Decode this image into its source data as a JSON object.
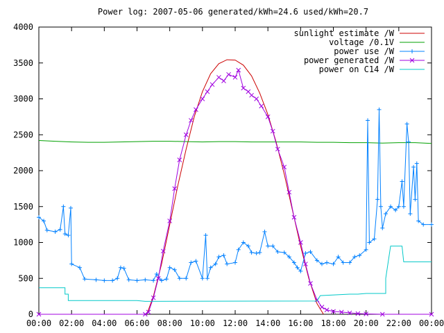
{
  "chart_data": {
    "type": "line",
    "title": "Power log: 2007-05-06 generated/kWh=24.6 used/kWh=20.7",
    "xlabel": "",
    "ylabel": "",
    "x_ticks": [
      "00:00",
      "02:00",
      "04:00",
      "06:00",
      "08:00",
      "10:00",
      "12:00",
      "14:00",
      "16:00",
      "18:00",
      "20:00",
      "22:00",
      "00:00"
    ],
    "y_ticks": [
      0,
      500,
      1000,
      1500,
      2000,
      2500,
      3000,
      3500,
      4000
    ],
    "xlim_hours": [
      0,
      24
    ],
    "ylim": [
      0,
      4000
    ],
    "grid": false,
    "legend_position": "top-right",
    "series": [
      {
        "name": "sunlight estimate /W",
        "color": "#cc0000",
        "style": "line",
        "points": [
          [
            6.6,
            0
          ],
          [
            7,
            250
          ],
          [
            7.5,
            700
          ],
          [
            8,
            1250
          ],
          [
            8.5,
            1800
          ],
          [
            9,
            2300
          ],
          [
            9.5,
            2750
          ],
          [
            10,
            3100
          ],
          [
            10.5,
            3350
          ],
          [
            11,
            3490
          ],
          [
            11.5,
            3545
          ],
          [
            12,
            3540
          ],
          [
            12.5,
            3470
          ],
          [
            13,
            3320
          ],
          [
            13.5,
            3080
          ],
          [
            14,
            2780
          ],
          [
            14.5,
            2400
          ],
          [
            15,
            1950
          ],
          [
            15.5,
            1450
          ],
          [
            16,
            950
          ],
          [
            16.5,
            500
          ],
          [
            17,
            150
          ],
          [
            17.4,
            0
          ]
        ]
      },
      {
        "name": "voltage /0.1V",
        "color": "#00a000",
        "style": "line",
        "points": [
          [
            0,
            2420
          ],
          [
            1,
            2410
          ],
          [
            2,
            2400
          ],
          [
            3,
            2395
          ],
          [
            4,
            2395
          ],
          [
            5,
            2400
          ],
          [
            6,
            2405
          ],
          [
            7,
            2410
          ],
          [
            8,
            2410
          ],
          [
            9,
            2405
          ],
          [
            10,
            2400
          ],
          [
            11,
            2405
          ],
          [
            12,
            2405
          ],
          [
            13,
            2400
          ],
          [
            14,
            2400
          ],
          [
            15,
            2400
          ],
          [
            16,
            2400
          ],
          [
            17,
            2395
          ],
          [
            18,
            2395
          ],
          [
            19,
            2390
          ],
          [
            20,
            2390
          ],
          [
            21,
            2385
          ],
          [
            22,
            2390
          ],
          [
            23,
            2390
          ],
          [
            24,
            2380
          ]
        ]
      },
      {
        "name": "power use /W",
        "color": "#0080ff",
        "style": "linespoints",
        "points": [
          [
            0,
            1350
          ],
          [
            0.3,
            1300
          ],
          [
            0.5,
            1170
          ],
          [
            1,
            1150
          ],
          [
            1.3,
            1180
          ],
          [
            1.5,
            1500
          ],
          [
            1.6,
            1120
          ],
          [
            1.8,
            1100
          ],
          [
            1.95,
            1480
          ],
          [
            2,
            700
          ],
          [
            2.5,
            650
          ],
          [
            2.8,
            490
          ],
          [
            3.5,
            480
          ],
          [
            4,
            470
          ],
          [
            4.5,
            470
          ],
          [
            4.8,
            500
          ],
          [
            5,
            650
          ],
          [
            5.2,
            640
          ],
          [
            5.5,
            480
          ],
          [
            6,
            470
          ],
          [
            6.5,
            480
          ],
          [
            7,
            470
          ],
          [
            7.2,
            560
          ],
          [
            7.5,
            470
          ],
          [
            7.8,
            490
          ],
          [
            8,
            650
          ],
          [
            8.3,
            620
          ],
          [
            8.6,
            500
          ],
          [
            9,
            500
          ],
          [
            9.3,
            720
          ],
          [
            9.6,
            740
          ],
          [
            10,
            500
          ],
          [
            10.2,
            1100
          ],
          [
            10.3,
            500
          ],
          [
            10.5,
            650
          ],
          [
            10.8,
            700
          ],
          [
            11,
            800
          ],
          [
            11.3,
            820
          ],
          [
            11.5,
            700
          ],
          [
            12,
            720
          ],
          [
            12.2,
            900
          ],
          [
            12.5,
            1000
          ],
          [
            12.8,
            950
          ],
          [
            13,
            860
          ],
          [
            13.3,
            850
          ],
          [
            13.5,
            860
          ],
          [
            13.8,
            1150
          ],
          [
            14,
            950
          ],
          [
            14.3,
            950
          ],
          [
            14.6,
            870
          ],
          [
            15,
            860
          ],
          [
            15.3,
            800
          ],
          [
            15.6,
            720
          ],
          [
            15.8,
            650
          ],
          [
            16,
            600
          ],
          [
            16.3,
            850
          ],
          [
            16.6,
            870
          ],
          [
            17,
            750
          ],
          [
            17.3,
            700
          ],
          [
            17.6,
            720
          ],
          [
            18,
            700
          ],
          [
            18.3,
            800
          ],
          [
            18.6,
            720
          ],
          [
            19,
            720
          ],
          [
            19.3,
            800
          ],
          [
            19.6,
            820
          ],
          [
            20,
            900
          ],
          [
            20.1,
            2700
          ],
          [
            20.2,
            1000
          ],
          [
            20.5,
            1050
          ],
          [
            20.7,
            1600
          ],
          [
            20.8,
            2850
          ],
          [
            20.9,
            1500
          ],
          [
            21,
            1200
          ],
          [
            21.2,
            1400
          ],
          [
            21.5,
            1500
          ],
          [
            21.8,
            1450
          ],
          [
            22,
            1500
          ],
          [
            22.2,
            1850
          ],
          [
            22.3,
            1500
          ],
          [
            22.5,
            2650
          ],
          [
            22.6,
            2400
          ],
          [
            22.7,
            1400
          ],
          [
            22.9,
            2050
          ],
          [
            23,
            1600
          ],
          [
            23.1,
            2100
          ],
          [
            23.2,
            1300
          ],
          [
            23.5,
            1250
          ],
          [
            24,
            1250
          ]
        ]
      },
      {
        "name": "power generated /W",
        "color": "#a000e0",
        "style": "linespoints",
        "points": [
          [
            0,
            0
          ],
          [
            6.5,
            0
          ],
          [
            6.7,
            30
          ],
          [
            7,
            230
          ],
          [
            7.3,
            500
          ],
          [
            7.6,
            880
          ],
          [
            8,
            1300
          ],
          [
            8.3,
            1750
          ],
          [
            8.6,
            2150
          ],
          [
            9,
            2500
          ],
          [
            9.3,
            2700
          ],
          [
            9.6,
            2850
          ],
          [
            10,
            3000
          ],
          [
            10.3,
            3100
          ],
          [
            10.6,
            3200
          ],
          [
            11,
            3300
          ],
          [
            11.3,
            3250
          ],
          [
            11.6,
            3340
          ],
          [
            12,
            3300
          ],
          [
            12.2,
            3400
          ],
          [
            12.5,
            3150
          ],
          [
            12.8,
            3100
          ],
          [
            13,
            3050
          ],
          [
            13.3,
            3000
          ],
          [
            13.6,
            2900
          ],
          [
            14,
            2750
          ],
          [
            14.3,
            2550
          ],
          [
            14.6,
            2300
          ],
          [
            15,
            2050
          ],
          [
            15.3,
            1700
          ],
          [
            15.6,
            1350
          ],
          [
            16,
            1000
          ],
          [
            16.3,
            700
          ],
          [
            16.6,
            430
          ],
          [
            17,
            200
          ],
          [
            17.3,
            100
          ],
          [
            17.6,
            60
          ],
          [
            18,
            40
          ],
          [
            18.5,
            30
          ],
          [
            19,
            20
          ],
          [
            19.5,
            10
          ],
          [
            20,
            5
          ],
          [
            21,
            0
          ],
          [
            24,
            0
          ]
        ]
      },
      {
        "name": "power on C14 /W",
        "color": "#00c8c8",
        "style": "line",
        "points": [
          [
            0,
            370
          ],
          [
            1.6,
            370
          ],
          [
            1.6,
            280
          ],
          [
            1.8,
            280
          ],
          [
            1.8,
            190
          ],
          [
            6,
            190
          ],
          [
            6.5,
            180
          ],
          [
            17,
            185
          ],
          [
            17.2,
            260
          ],
          [
            19,
            280
          ],
          [
            19.5,
            280
          ],
          [
            20,
            290
          ],
          [
            21.2,
            290
          ],
          [
            21.2,
            500
          ],
          [
            21.5,
            950
          ],
          [
            22.2,
            950
          ],
          [
            22.3,
            730
          ],
          [
            24,
            730
          ]
        ]
      }
    ]
  }
}
